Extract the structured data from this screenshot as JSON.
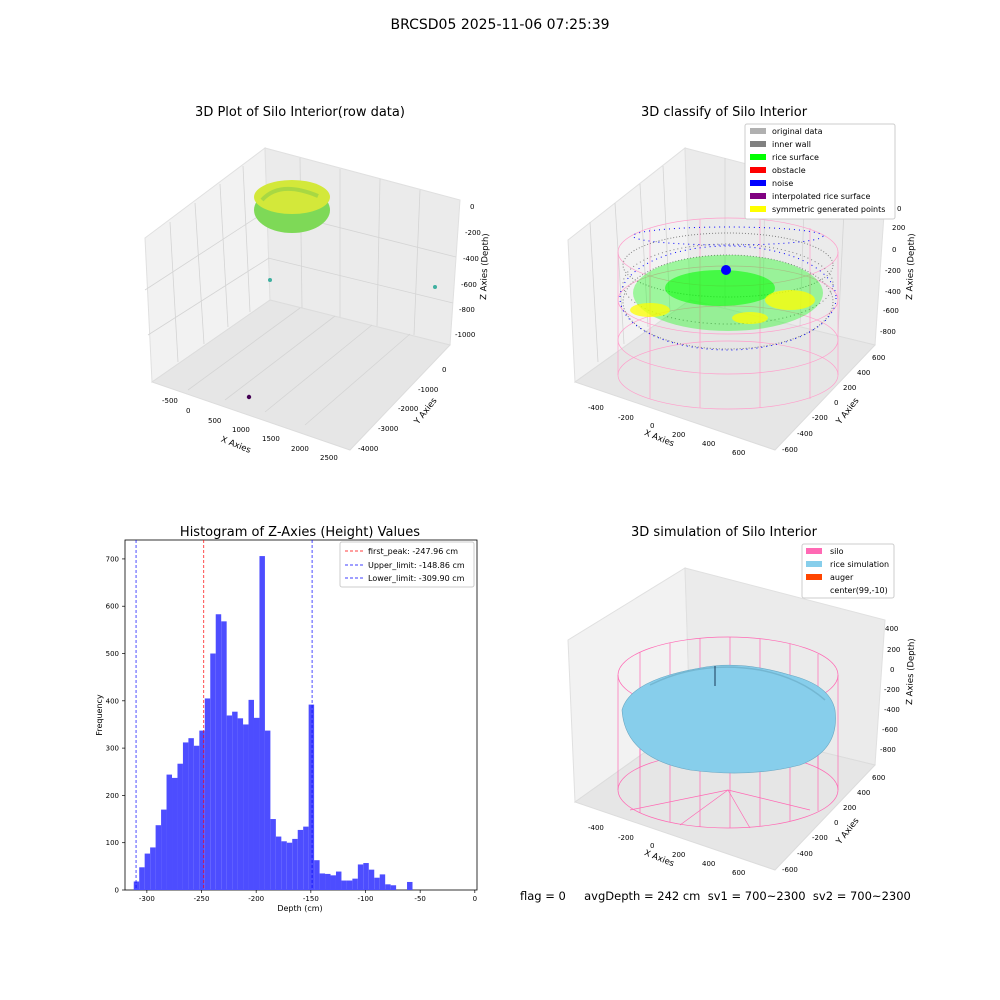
{
  "figure": {
    "suptitle": "BRCSD05 2025-11-06 07:25:39",
    "footer": "flag = 0     avgDepth = 242 cm  sv1 = 700~2300  sv2 = 700~2300"
  },
  "panels": {
    "raw": {
      "title": "3D Plot of Silo Interior(row data)",
      "xlabel": "X Axies",
      "ylabel": "Y Axies",
      "zlabel": "Z Axies (Depth)",
      "xticks": [
        "-500",
        "0",
        "500",
        "1000",
        "1500",
        "2000",
        "2500"
      ],
      "yticks": [
        "0",
        "-1000",
        "-2000",
        "-3000",
        "-4000"
      ],
      "zticks": [
        "0",
        "-200",
        "-400",
        "-600",
        "-800",
        "-1000"
      ]
    },
    "classify": {
      "title": "3D classify of Silo Interior",
      "xlabel": "X Axies",
      "ylabel": "Y Axies",
      "zlabel": "Z Axies (Depth)",
      "xticks": [
        "-400",
        "-200",
        "0",
        "200",
        "400",
        "600"
      ],
      "yticks": [
        "600",
        "400",
        "200",
        "0",
        "-200",
        "-400",
        "-600"
      ],
      "zticks": [
        "200",
        "0",
        "-200",
        "-400",
        "-600",
        "-800"
      ],
      "zticks_top": "0",
      "legend": [
        {
          "label": "original data",
          "color": "#b0b0b0"
        },
        {
          "label": "inner wall",
          "color": "#808080"
        },
        {
          "label": "rice surface",
          "color": "#00ff00"
        },
        {
          "label": "obstacle",
          "color": "#ff0000"
        },
        {
          "label": "noise",
          "color": "#0000ff"
        },
        {
          "label": "interpolated rice surface",
          "color": "#800080"
        },
        {
          "label": "symmetric generated points",
          "color": "#ffff00"
        }
      ]
    },
    "simulation": {
      "title": "3D simulation of Silo Interior",
      "xlabel": "X Axies",
      "ylabel": "Y Axies",
      "zlabel": "Z Axies (Depth)",
      "xticks": [
        "-400",
        "-200",
        "0",
        "200",
        "400",
        "600"
      ],
      "yticks": [
        "600",
        "400",
        "200",
        "0",
        "-200",
        "-400",
        "-600"
      ],
      "zticks": [
        "400",
        "200",
        "0",
        "-200",
        "-400",
        "-600",
        "-800"
      ],
      "legend": [
        {
          "label": "silo",
          "color": "#ff69b4"
        },
        {
          "label": "rice simulation",
          "color": "#87ceeb"
        },
        {
          "label": "auger",
          "color": "#ff4500"
        },
        {
          "label": "center(99,-10)",
          "color": "#ffffff"
        }
      ]
    }
  },
  "chart_data": {
    "type": "bar",
    "title": "Histogram of Z-Axies (Height) Values",
    "xlabel": "Depth (cm)",
    "ylabel": "Frequency",
    "xlim": [
      -320,
      2
    ],
    "ylim": [
      0,
      740
    ],
    "xticks": [
      -300,
      -250,
      -200,
      -150,
      -100,
      -50,
      0
    ],
    "yticks": [
      0,
      100,
      200,
      300,
      400,
      500,
      600,
      700
    ],
    "bar_color": "#4d4dff",
    "bin_width": 5.0,
    "bins": [
      [
        -312,
        18
      ],
      [
        -307,
        48
      ],
      [
        -302,
        77
      ],
      [
        -297,
        90
      ],
      [
        -292,
        137
      ],
      [
        -287,
        170
      ],
      [
        -282,
        244
      ],
      [
        -277,
        237
      ],
      [
        -272,
        267
      ],
      [
        -267,
        312
      ],
      [
        -262,
        321
      ],
      [
        -257,
        305
      ],
      [
        -252,
        337
      ],
      [
        -247,
        405
      ],
      [
        -242,
        500
      ],
      [
        -237,
        583
      ],
      [
        -232,
        568
      ],
      [
        -227,
        369
      ],
      [
        -222,
        377
      ],
      [
        -217,
        363
      ],
      [
        -212,
        350
      ],
      [
        -207,
        402
      ],
      [
        -202,
        364
      ],
      [
        -197,
        706
      ],
      [
        -192,
        337
      ],
      [
        -187,
        150
      ],
      [
        -182,
        113
      ],
      [
        -177,
        103
      ],
      [
        -172,
        100
      ],
      [
        -167,
        108
      ],
      [
        -162,
        127
      ],
      [
        -157,
        134
      ],
      [
        -152,
        392
      ],
      [
        -147,
        63
      ],
      [
        -142,
        35
      ],
      [
        -137,
        34
      ],
      [
        -132,
        31
      ],
      [
        -127,
        39
      ],
      [
        -122,
        20
      ],
      [
        -117,
        20
      ],
      [
        -112,
        24
      ],
      [
        -107,
        54
      ],
      [
        -102,
        57
      ],
      [
        -97,
        43
      ],
      [
        -92,
        26
      ],
      [
        -87,
        33
      ],
      [
        -82,
        12
      ],
      [
        -77,
        10
      ],
      [
        -72,
        0
      ],
      [
        -67,
        0
      ],
      [
        -62,
        17
      ]
    ],
    "vlines": [
      {
        "label": "first_peak: -247.96 cm",
        "x": -247.96,
        "color": "#ff0000"
      },
      {
        "label": "Upper_limit: -148.86 cm",
        "x": -148.86,
        "color": "#0000ff"
      },
      {
        "label": "Lower_limit: -309.90 cm",
        "x": -309.9,
        "color": "#0000ff"
      }
    ],
    "legend_position": "top-right"
  }
}
